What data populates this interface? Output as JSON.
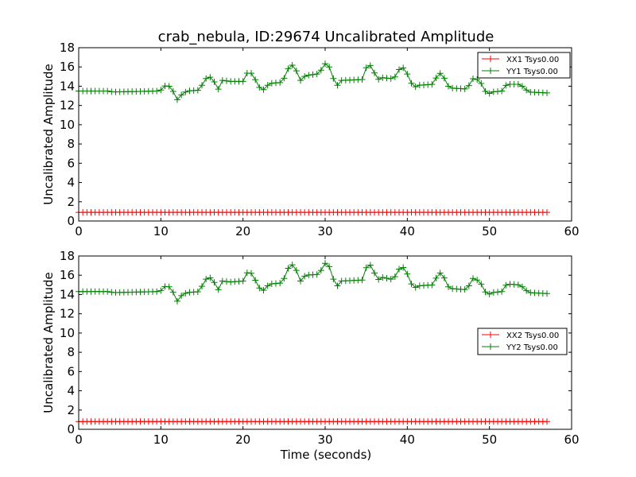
{
  "figure": {
    "title": "crab_nebula, ID:29674 Uncalibrated Amplitude"
  },
  "chart_data": [
    {
      "type": "line",
      "panel": "top",
      "title": "crab_nebula, ID:29674 Uncalibrated Amplitude",
      "xlabel": "",
      "ylabel": "Uncalibrated Amplitude",
      "xlim": [
        0,
        60
      ],
      "ylim": [
        0,
        18
      ],
      "xticks": [
        0,
        10,
        20,
        30,
        40,
        50,
        60
      ],
      "yticks": [
        0,
        2,
        4,
        6,
        8,
        10,
        12,
        14,
        16,
        18
      ],
      "grid": false,
      "legend_position": "top-right",
      "series": [
        {
          "name": "XX1 Tsys0.00",
          "color": "#ff0000",
          "marker": "+",
          "x_start": 0,
          "x_step": 0.5,
          "count": 115,
          "values_constant": 0.9
        },
        {
          "name": "YY1 Tsys0.00",
          "color": "#008000",
          "marker": "+",
          "points": [
            [
              0,
              13.5
            ],
            [
              3.5,
              13.5
            ],
            [
              4.2,
              13.4
            ],
            [
              9.5,
              13.5
            ],
            [
              10.0,
              13.6
            ],
            [
              10.7,
              14.2
            ],
            [
              11.3,
              13.8
            ],
            [
              12.0,
              12.6
            ],
            [
              12.6,
              13.2
            ],
            [
              13.2,
              13.5
            ],
            [
              14.7,
              13.6
            ],
            [
              15.3,
              14.6
            ],
            [
              15.8,
              15.1
            ],
            [
              16.4,
              14.6
            ],
            [
              17.0,
              13.7
            ],
            [
              17.5,
              14.6
            ],
            [
              18.5,
              14.5
            ],
            [
              20.0,
              14.5
            ],
            [
              20.7,
              15.7
            ],
            [
              21.3,
              15.0
            ],
            [
              21.8,
              14.2
            ],
            [
              22.3,
              13.4
            ],
            [
              22.8,
              14.0
            ],
            [
              23.4,
              14.3
            ],
            [
              24.8,
              14.4
            ],
            [
              25.4,
              15.7
            ],
            [
              25.9,
              16.3
            ],
            [
              26.5,
              15.6
            ],
            [
              27.0,
              14.6
            ],
            [
              27.6,
              15.1
            ],
            [
              29.3,
              15.3
            ],
            [
              29.9,
              16.4
            ],
            [
              30.5,
              16.0
            ],
            [
              31.0,
              14.8
            ],
            [
              31.5,
              14.1
            ],
            [
              32.0,
              14.6
            ],
            [
              34.5,
              14.7
            ],
            [
              35.2,
              16.4
            ],
            [
              35.8,
              15.9
            ],
            [
              36.3,
              14.6
            ],
            [
              36.8,
              14.9
            ],
            [
              38.0,
              14.8
            ],
            [
              38.6,
              15.0
            ],
            [
              39.2,
              16.1
            ],
            [
              39.8,
              15.7
            ],
            [
              40.4,
              14.4
            ],
            [
              40.9,
              13.9
            ],
            [
              41.4,
              14.1
            ],
            [
              43.2,
              14.2
            ],
            [
              43.8,
              15.5
            ],
            [
              44.4,
              15.0
            ],
            [
              45.0,
              14.0
            ],
            [
              45.5,
              13.8
            ],
            [
              47.3,
              13.7
            ],
            [
              47.9,
              14.8
            ],
            [
              48.5,
              14.7
            ],
            [
              49.1,
              14.2
            ],
            [
              49.7,
              13.1
            ],
            [
              50.3,
              13.4
            ],
            [
              51.5,
              13.5
            ],
            [
              52.1,
              14.2
            ],
            [
              53.6,
              14.2
            ],
            [
              54.2,
              13.9
            ],
            [
              54.7,
              13.4
            ],
            [
              57.0,
              13.3
            ]
          ]
        }
      ]
    },
    {
      "type": "line",
      "panel": "bottom",
      "title": "",
      "xlabel": "Time (seconds)",
      "ylabel": "Uncalibrated Amplitude",
      "xlim": [
        0,
        60
      ],
      "ylim": [
        0,
        18
      ],
      "xticks": [
        0,
        10,
        20,
        30,
        40,
        50,
        60
      ],
      "yticks": [
        0,
        2,
        4,
        6,
        8,
        10,
        12,
        14,
        16,
        18
      ],
      "grid": false,
      "legend_position": "center-right",
      "series": [
        {
          "name": "XX2 Tsys0.00",
          "color": "#ff0000",
          "marker": "+",
          "x_start": 0,
          "x_step": 0.5,
          "count": 115,
          "values_constant": 0.8
        },
        {
          "name": "YY2 Tsys0.00",
          "color": "#008000",
          "marker": "+",
          "points": [
            [
              0,
              14.3
            ],
            [
              3.5,
              14.3
            ],
            [
              4.2,
              14.2
            ],
            [
              9.5,
              14.3
            ],
            [
              10.0,
              14.4
            ],
            [
              10.7,
              15.0
            ],
            [
              11.3,
              14.6
            ],
            [
              12.0,
              13.3
            ],
            [
              12.6,
              14.0
            ],
            [
              13.2,
              14.2
            ],
            [
              14.7,
              14.3
            ],
            [
              15.3,
              15.4
            ],
            [
              15.8,
              15.9
            ],
            [
              16.4,
              15.4
            ],
            [
              17.0,
              14.5
            ],
            [
              17.5,
              15.4
            ],
            [
              18.5,
              15.3
            ],
            [
              20.0,
              15.4
            ],
            [
              20.7,
              16.6
            ],
            [
              21.3,
              15.8
            ],
            [
              21.8,
              15.0
            ],
            [
              22.3,
              14.2
            ],
            [
              22.8,
              14.8
            ],
            [
              23.4,
              15.1
            ],
            [
              24.8,
              15.2
            ],
            [
              25.4,
              16.6
            ],
            [
              25.9,
              17.2
            ],
            [
              26.5,
              16.5
            ],
            [
              27.0,
              15.4
            ],
            [
              27.6,
              16.0
            ],
            [
              29.3,
              16.1
            ],
            [
              29.9,
              17.3
            ],
            [
              30.5,
              16.9
            ],
            [
              31.0,
              15.6
            ],
            [
              31.5,
              14.9
            ],
            [
              32.0,
              15.4
            ],
            [
              34.5,
              15.5
            ],
            [
              35.2,
              17.3
            ],
            [
              35.8,
              16.8
            ],
            [
              36.3,
              15.4
            ],
            [
              36.8,
              15.8
            ],
            [
              38.0,
              15.6
            ],
            [
              38.6,
              15.9
            ],
            [
              39.2,
              17.0
            ],
            [
              39.8,
              16.6
            ],
            [
              40.4,
              15.2
            ],
            [
              40.9,
              14.7
            ],
            [
              41.4,
              14.9
            ],
            [
              43.2,
              15.0
            ],
            [
              43.8,
              16.4
            ],
            [
              44.4,
              15.9
            ],
            [
              45.0,
              14.8
            ],
            [
              45.5,
              14.6
            ],
            [
              47.3,
              14.5
            ],
            [
              47.9,
              15.7
            ],
            [
              48.5,
              15.5
            ],
            [
              49.1,
              15.0
            ],
            [
              49.7,
              13.9
            ],
            [
              50.3,
              14.2
            ],
            [
              51.5,
              14.3
            ],
            [
              52.1,
              15.1
            ],
            [
              53.6,
              15.0
            ],
            [
              54.2,
              14.7
            ],
            [
              54.7,
              14.2
            ],
            [
              57.0,
              14.1
            ]
          ]
        }
      ]
    }
  ]
}
